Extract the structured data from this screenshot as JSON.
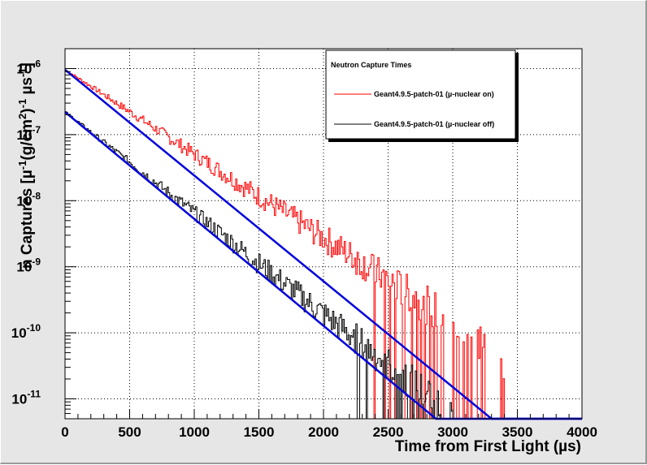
{
  "chart_data": {
    "type": "line",
    "title": "",
    "xlabel": "Time from First Light (µs)",
    "ylabel_parts": {
      "main": "n Captures [µ",
      "sup1": "-1",
      "mid": "(g/cm",
      "sup2": "2",
      "end": ")",
      "sup3": "-1",
      "unit": " µs",
      "sup4": "-1",
      "close": "]"
    },
    "xlim": [
      0,
      4000
    ],
    "ylim": [
      5e-12,
      2e-06
    ],
    "yscale": "log",
    "grid": true,
    "x_ticks": [
      "0",
      "500",
      "1000",
      "1500",
      "2000",
      "2500",
      "3000",
      "3500",
      "4000"
    ],
    "y_ticks": [
      {
        "base": "10",
        "exp": "-6",
        "value": 1e-06
      },
      {
        "base": "10",
        "exp": "-7",
        "value": 1e-07
      },
      {
        "base": "10",
        "exp": "-8",
        "value": 1e-08
      },
      {
        "base": "10",
        "exp": "-9",
        "value": 1e-09
      },
      {
        "base": "10",
        "exp": "-10",
        "value": 1e-10
      },
      {
        "base": "10",
        "exp": "-11",
        "value": 1e-11
      }
    ],
    "legend": {
      "title": "Neutron Capture Times",
      "placement": "top-right",
      "entries": [
        {
          "label": "Geant4.9.5-patch-01 (µ-nuclear on)",
          "color": "#ff0000"
        },
        {
          "label": "Geant4.9.5-patch-01 (µ-nuclear off)",
          "color": "#000000"
        }
      ]
    },
    "series": [
      {
        "style": "histogram",
        "color": "#ff0000",
        "x": [
          0,
          250,
          500,
          750,
          1000,
          1250,
          1500,
          1750,
          2000,
          2250,
          2500,
          2750,
          3000,
          3250
        ],
        "values": [
          9.5e-07,
          4.6e-07,
          2.2e-07,
          1.05e-07,
          5e-08,
          2.4e-08,
          1.15e-08,
          5.6e-09,
          2.7e-09,
          1.3e-09,
          6.2e-10,
          3e-10,
          1.4e-10,
          6.8e-11
        ]
      },
      {
        "style": "histogram",
        "color": "#000000",
        "x": [
          0,
          250,
          500,
          750,
          1000,
          1250,
          1500,
          1750,
          2000,
          2250,
          2500,
          2750
        ],
        "values": [
          2.2e-07,
          9e-08,
          3.8e-08,
          1.55e-08,
          6.5e-09,
          2.7e-09,
          1.1e-09,
          4.6e-10,
          1.9e-10,
          8e-11,
          3.3e-11,
          1.4e-11
        ]
      },
      {
        "style": "fit",
        "color": "#0000dd",
        "x": [
          0,
          3300,
          4000
        ],
        "values": [
          9.6e-07,
          5e-12,
          5e-12
        ]
      },
      {
        "style": "fit",
        "color": "#0000dd",
        "x": [
          0,
          2870,
          4000
        ],
        "values": [
          2.2e-07,
          5e-12,
          5e-12
        ]
      }
    ]
  }
}
